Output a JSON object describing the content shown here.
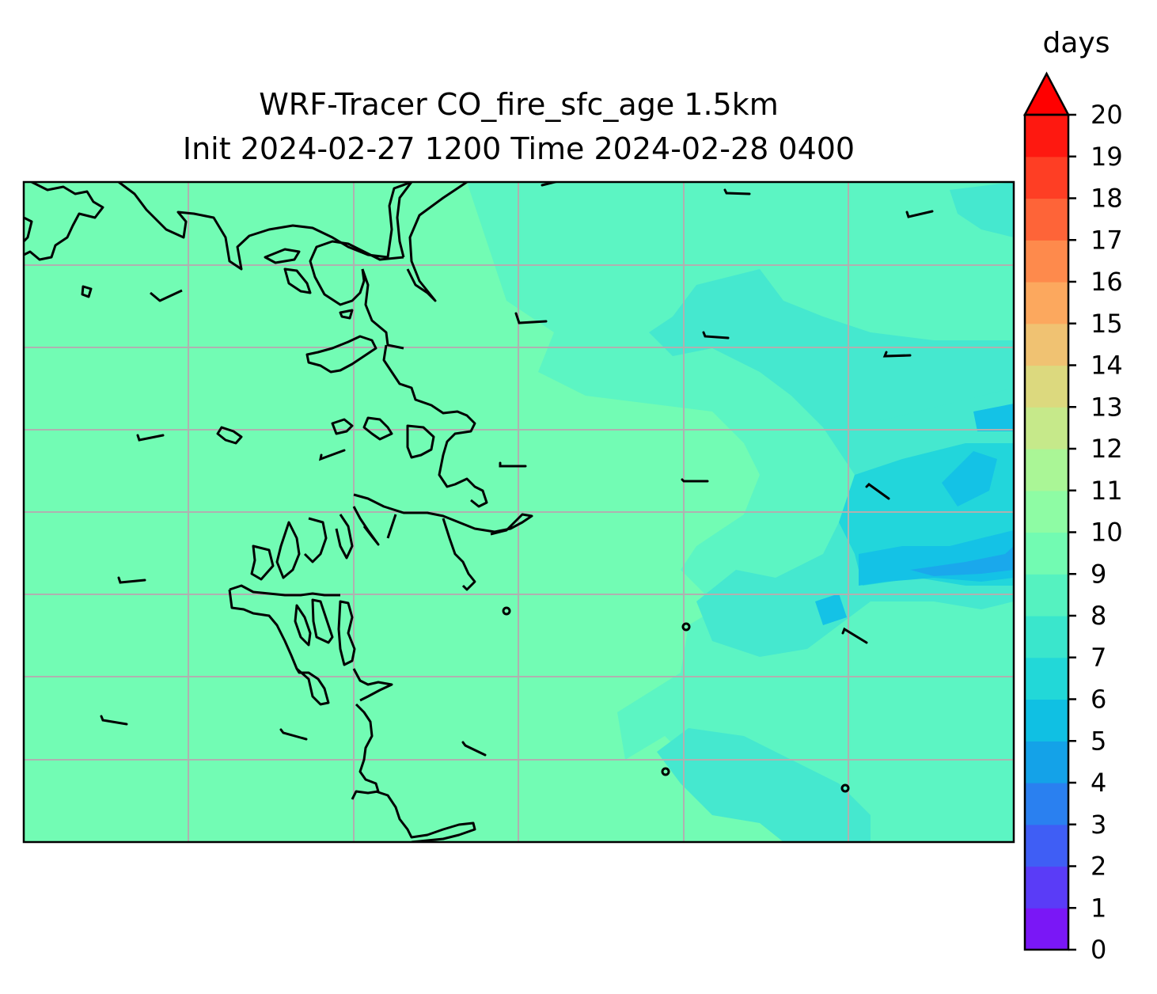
{
  "figure": {
    "title_line1": "WRF-Tracer CO_fire_sfc_age 1.5km",
    "title_line2": "Init 2024-02-27 1200 Time 2024-02-28 0400"
  },
  "colorbar": {
    "unit": "days",
    "ticks": [
      "0",
      "1",
      "2",
      "3",
      "4",
      "5",
      "6",
      "7",
      "8",
      "9",
      "10",
      "11",
      "12",
      "13",
      "14",
      "15",
      "16",
      "17",
      "18",
      "19",
      "20"
    ],
    "extend": "max",
    "colors": [
      "#7a17f6",
      "#5a3cf7",
      "#3f5ef5",
      "#2a80f0",
      "#14a2e8",
      "#10c0e3",
      "#22d8d8",
      "#3ae6cc",
      "#55f2c0",
      "#72fbb2",
      "#8efca4",
      "#aaf696",
      "#c6e98a",
      "#dcd97e",
      "#f0c272",
      "#fca85e",
      "#fe8a4c",
      "#fe6438",
      "#fe3e24",
      "#fe1810",
      "#ff0000"
    ]
  },
  "map": {
    "background_color": "#72fcb4",
    "gridline_color": "#b0b0b0",
    "coastline_color": "#000000",
    "wind_barbs": true
  }
}
